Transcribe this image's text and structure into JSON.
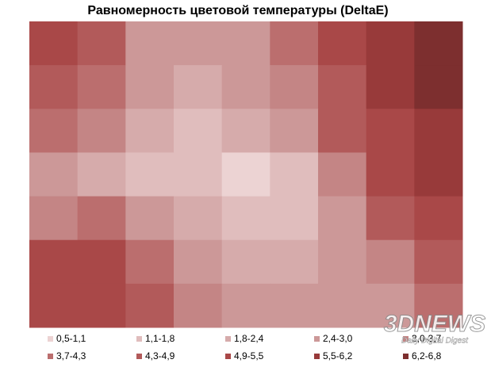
{
  "chart_data": {
    "type": "contour",
    "title": "Равномерность цветовой температуры (DeltaE)",
    "z": [
      [
        5.0,
        4.5,
        3.0,
        2.5,
        3.0,
        4.0,
        5.0,
        6.0,
        6.5
      ],
      [
        4.8,
        4.0,
        2.5,
        2.0,
        2.5,
        3.5,
        4.8,
        5.8,
        6.5
      ],
      [
        4.0,
        3.2,
        2.2,
        1.8,
        2.0,
        3.0,
        4.5,
        5.5,
        6.2
      ],
      [
        2.5,
        2.0,
        1.8,
        1.5,
        1.0,
        1.8,
        3.5,
        5.0,
        5.8
      ],
      [
        3.5,
        4.0,
        2.8,
        2.0,
        1.5,
        1.8,
        2.8,
        4.5,
        5.2
      ],
      [
        5.0,
        5.0,
        4.0,
        2.8,
        2.0,
        2.2,
        2.5,
        3.5,
        4.5
      ],
      [
        5.5,
        5.5,
        4.5,
        3.5,
        2.8,
        2.5,
        2.5,
        3.0,
        4.0
      ]
    ],
    "bands": [
      {
        "label": "0,5-1,1",
        "from": 0.5,
        "to": 1.1,
        "color": "#ecd3d3"
      },
      {
        "label": "1,1-1,8",
        "from": 1.1,
        "to": 1.8,
        "color": "#e0bdbd"
      },
      {
        "label": "1,8-2,4",
        "from": 1.8,
        "to": 2.4,
        "color": "#d6abab"
      },
      {
        "label": "2,4-3,0",
        "from": 2.4,
        "to": 3.0,
        "color": "#cc9898"
      },
      {
        "label": "3,0-3,7",
        "from": 3.0,
        "to": 3.7,
        "color": "#c48585"
      },
      {
        "label": "3,7-4,3",
        "from": 3.7,
        "to": 4.3,
        "color": "#bb6e6e"
      },
      {
        "label": "4,3-4,9",
        "from": 4.3,
        "to": 4.9,
        "color": "#b25a5a"
      },
      {
        "label": "4,9-5,5",
        "from": 4.9,
        "to": 5.5,
        "color": "#a94848"
      },
      {
        "label": "5,5-6,2",
        "from": 5.5,
        "to": 6.2,
        "color": "#983a3a"
      },
      {
        "label": "6,2-6,8",
        "from": 6.2,
        "to": 6.8,
        "color": "#7d2f2f"
      }
    ],
    "watermark": "3DNEWS",
    "watermark_sub": "Daily Digital Digest"
  }
}
